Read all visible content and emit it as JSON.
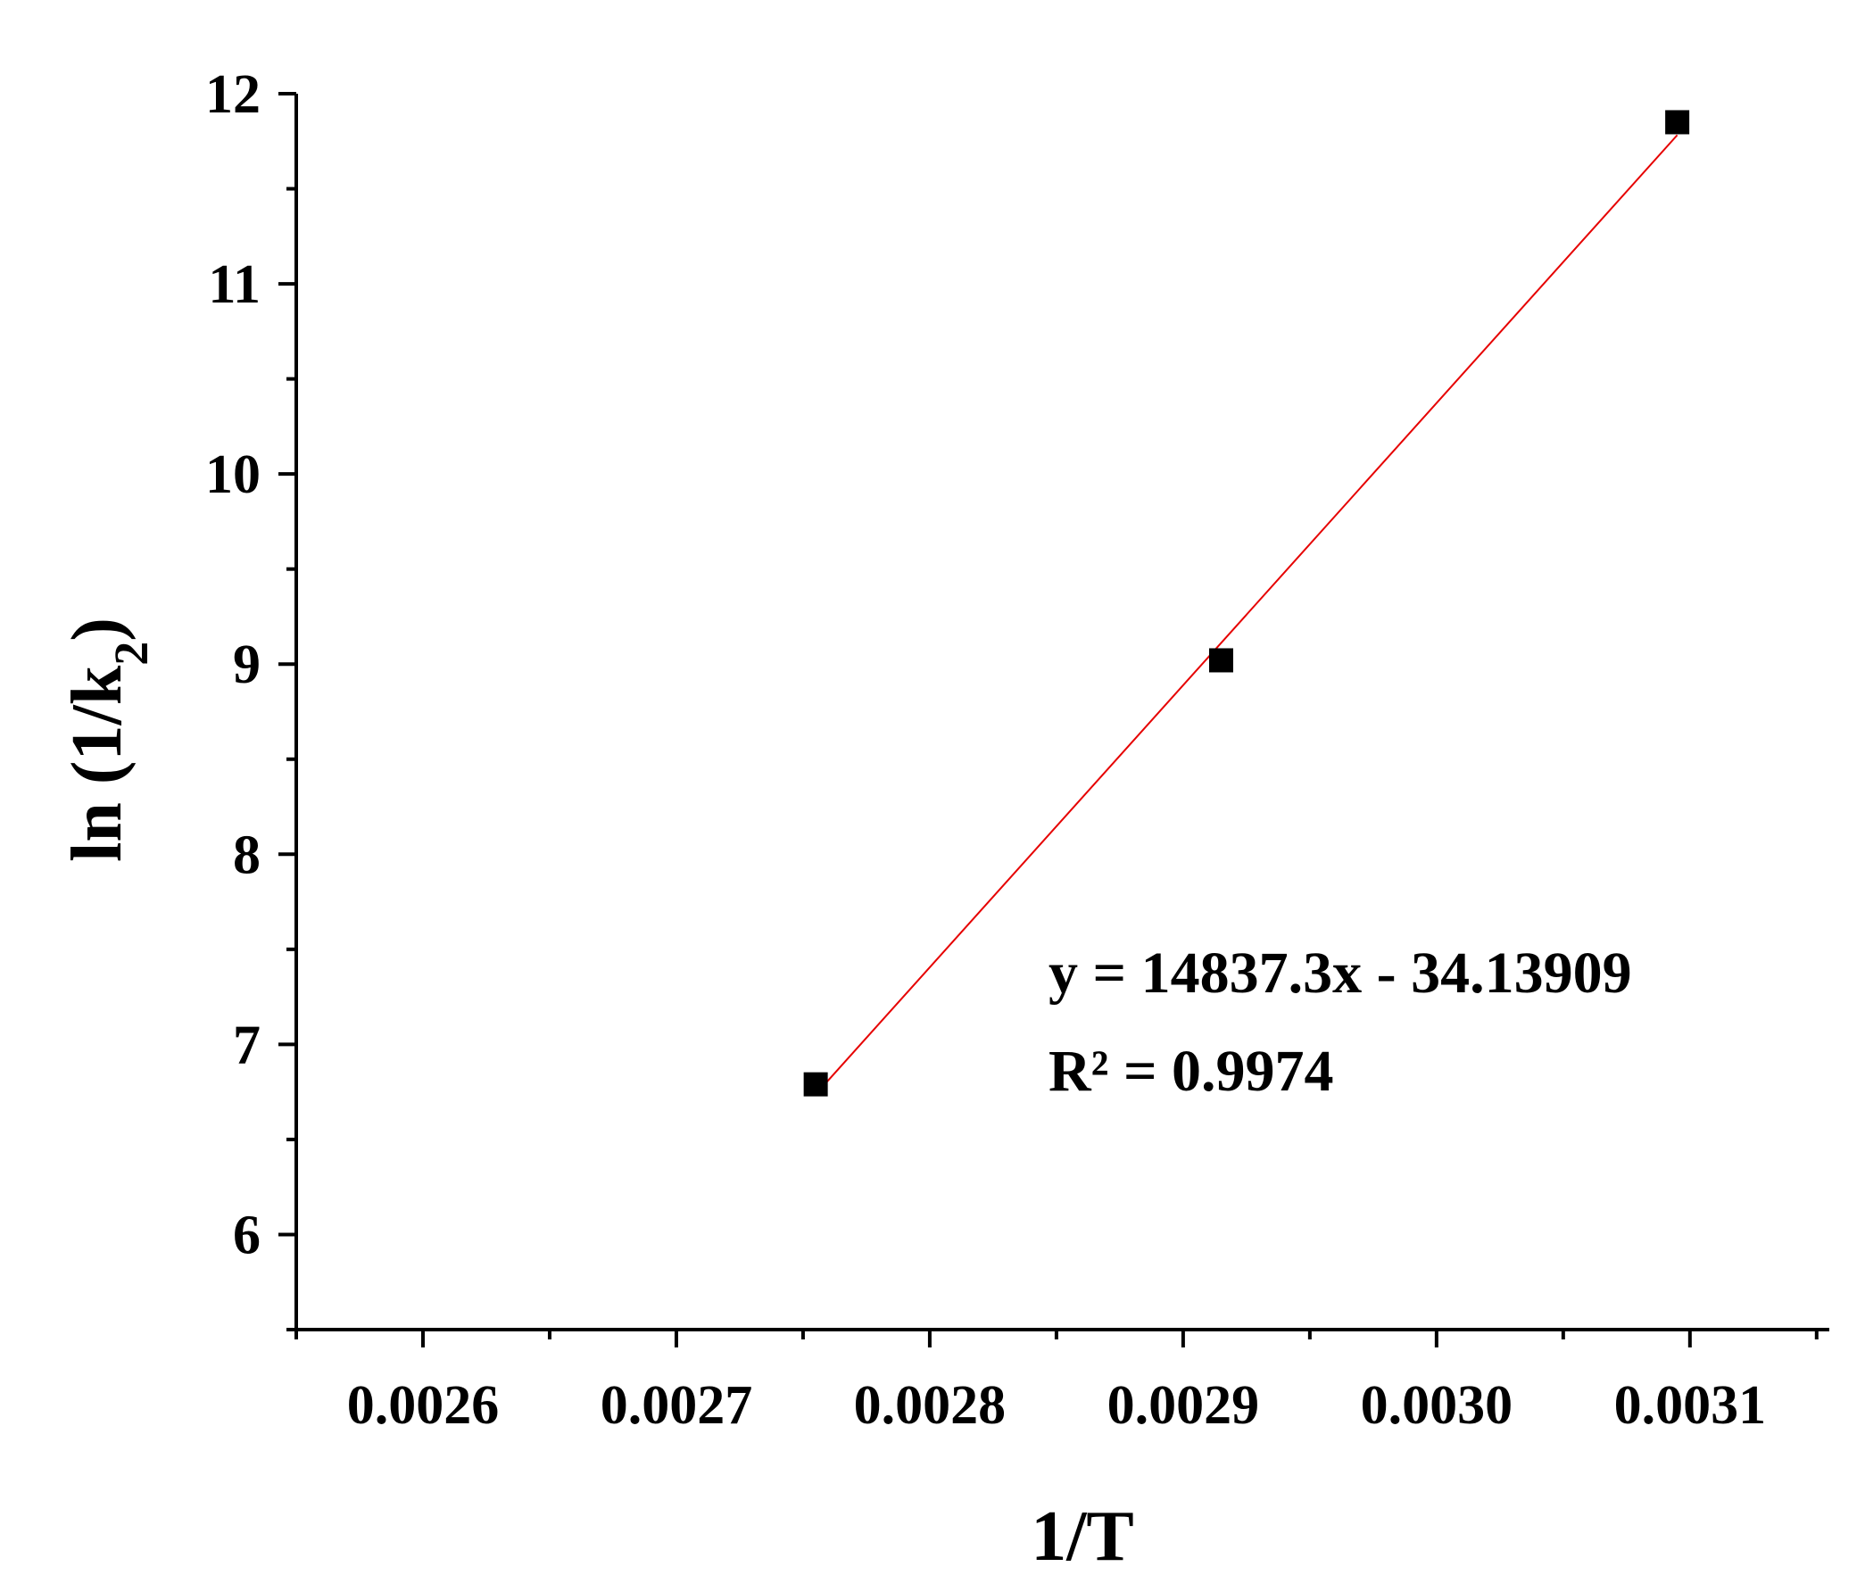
{
  "chart_data": {
    "type": "scatter",
    "title": "",
    "xlabel": "1/T",
    "ylabel": {
      "main": "ln (1/k",
      "sub": "2",
      "close": ")"
    },
    "xlim": [
      0.00255,
      0.003155
    ],
    "ylim": [
      5.5,
      12.0
    ],
    "x_ticks": [
      {
        "value": 0.0026,
        "label": "0.0026"
      },
      {
        "value": 0.0027,
        "label": "0.0027"
      },
      {
        "value": 0.0028,
        "label": "0.0028"
      },
      {
        "value": 0.0029,
        "label": "0.0029"
      },
      {
        "value": 0.003,
        "label": "0.0030"
      },
      {
        "value": 0.0031,
        "label": "0.0031"
      }
    ],
    "y_ticks": [
      {
        "value": 6,
        "label": "6"
      },
      {
        "value": 7,
        "label": "7"
      },
      {
        "value": 8,
        "label": "8"
      },
      {
        "value": 9,
        "label": "9"
      },
      {
        "value": 10,
        "label": "10"
      },
      {
        "value": 11,
        "label": "11"
      },
      {
        "value": 12,
        "label": "12"
      }
    ],
    "x_minor_step": 5e-05,
    "y_minor_step": 0.5,
    "grid": false,
    "series": [
      {
        "marker": "square",
        "color": "#000000",
        "points": [
          {
            "x": 0.002755,
            "y": 6.79
          },
          {
            "x": 0.002915,
            "y": 9.02
          },
          {
            "x": 0.003095,
            "y": 11.85
          }
        ]
      }
    ],
    "fit_line": {
      "color": "#e60000",
      "slope": 14837.3,
      "intercept": -34.13909,
      "x_range": [
        0.002755,
        0.003095
      ]
    },
    "annotations": {
      "equation": "y = 14837.3x - 34.13909",
      "r_squared": "R² = 0.9974"
    }
  }
}
